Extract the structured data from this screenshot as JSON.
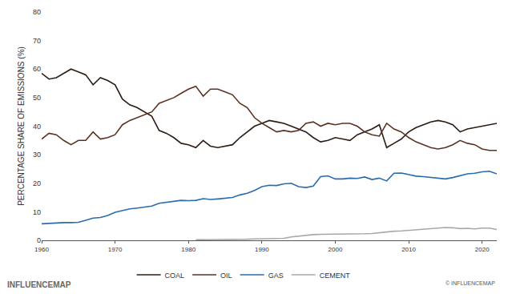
{
  "chart_data": {
    "type": "line",
    "y_label": "PERCENTAGE SHARE OF EMISSIONS (%)",
    "footer": "© INFLUENCEMAP",
    "watermark": "INFLUENCEMAP",
    "x": [
      1960,
      1961,
      1962,
      1963,
      1964,
      1965,
      1966,
      1967,
      1968,
      1969,
      1970,
      1971,
      1972,
      1973,
      1974,
      1975,
      1976,
      1977,
      1978,
      1979,
      1980,
      1981,
      1982,
      1983,
      1984,
      1985,
      1986,
      1987,
      1988,
      1989,
      1990,
      1991,
      1992,
      1993,
      1994,
      1995,
      1996,
      1997,
      1998,
      1999,
      2000,
      2001,
      2002,
      2003,
      2004,
      2005,
      2006,
      2007,
      2008,
      2009,
      2010,
      2011,
      2012,
      2013,
      2014,
      2015,
      2016,
      2017,
      2018,
      2019,
      2020,
      2021,
      2022
    ],
    "series": [
      {
        "name": "COAL",
        "color": "#2b1d14",
        "line_style": "solid",
        "values": [
          58.5,
          56.5,
          57,
          58.5,
          60,
          59,
          58,
          54.5,
          57,
          56,
          54.5,
          49.5,
          47.5,
          46.5,
          45,
          43.5,
          38.5,
          37.5,
          36,
          34,
          33.5,
          32.5,
          35,
          33,
          32.5,
          33,
          33.5,
          36,
          38,
          40,
          41,
          42,
          41.5,
          41,
          40,
          39,
          38,
          36,
          34.5,
          35,
          36,
          35.5,
          35,
          37,
          38,
          39,
          40.5,
          32.5,
          34,
          35.5,
          38,
          39.5,
          40.5,
          41.5,
          42,
          41.5,
          40.5,
          38,
          39,
          39.5,
          40,
          40.5,
          41
        ]
      },
      {
        "name": "OIL",
        "color": "#5a3322",
        "line_style": "solid",
        "values": [
          35.5,
          37.5,
          37,
          35,
          33.5,
          35,
          35,
          38,
          35.5,
          36,
          37,
          40.5,
          42,
          43,
          44,
          45,
          48,
          49,
          50,
          51.5,
          53,
          54,
          50.5,
          53,
          53,
          52,
          51,
          48,
          46.5,
          43,
          41,
          39.5,
          38,
          38.5,
          38,
          38.5,
          41,
          41.5,
          40,
          41,
          40.5,
          41,
          41,
          40,
          38,
          37,
          36.5,
          41,
          39,
          38,
          36,
          34.5,
          33.5,
          32.5,
          32,
          32.5,
          33.5,
          35,
          34,
          33.5,
          32,
          31.5,
          31.5
        ]
      },
      {
        "name": "GAS",
        "color": "#2a6cad",
        "line_style": "solid",
        "values": [
          5.8,
          6.0,
          6.2,
          6.2,
          6.2,
          6.3,
          7,
          7.8,
          8,
          8.7,
          9.8,
          10.5,
          11,
          11.3,
          11.6,
          12,
          13,
          13.3,
          13.8,
          14,
          13.9,
          14,
          14.6,
          14.3,
          14.5,
          14.7,
          15,
          15.9,
          16.5,
          17.5,
          18.8,
          19.3,
          19.2,
          19.8,
          20,
          18.8,
          18.5,
          19,
          22.3,
          22.6,
          21.5,
          21.5,
          21.8,
          21.7,
          22.2,
          21.3,
          21.8,
          20.8,
          23.5,
          23.6,
          23,
          22.5,
          22.3,
          22,
          21.8,
          21.5,
          22,
          22.6,
          23.3,
          23.5,
          24,
          24.2,
          23.3
        ]
      },
      {
        "name": "CEMENT",
        "color": "#a8a8a8",
        "line_style": "solid",
        "values": [
          null,
          null,
          null,
          null,
          null,
          null,
          null,
          null,
          null,
          null,
          null,
          null,
          null,
          null,
          null,
          null,
          null,
          null,
          null,
          null,
          null,
          0.2,
          0.2,
          0.2,
          0.3,
          0.3,
          0.3,
          0.4,
          0.4,
          0.5,
          0.5,
          0.6,
          0.6,
          0.7,
          1.2,
          1.5,
          1.8,
          2.0,
          2.1,
          2.1,
          2.1,
          2.1,
          2.2,
          2.2,
          2.3,
          2.4,
          2.7,
          3.0,
          3.2,
          3.3,
          3.5,
          3.7,
          3.9,
          4.1,
          4.3,
          4.5,
          4.4,
          4.1,
          4.2,
          4.0,
          4.3,
          4.3,
          3.8
        ]
      }
    ],
    "xlim": [
      1960,
      2022
    ],
    "xticks": [
      1960,
      1970,
      1980,
      1990,
      2000,
      2010,
      2020
    ],
    "ylim": [
      0,
      80
    ],
    "yticks": [
      0,
      10,
      20,
      30,
      40,
      50,
      60,
      70,
      80
    ],
    "grid": false,
    "legend": "bottom"
  }
}
